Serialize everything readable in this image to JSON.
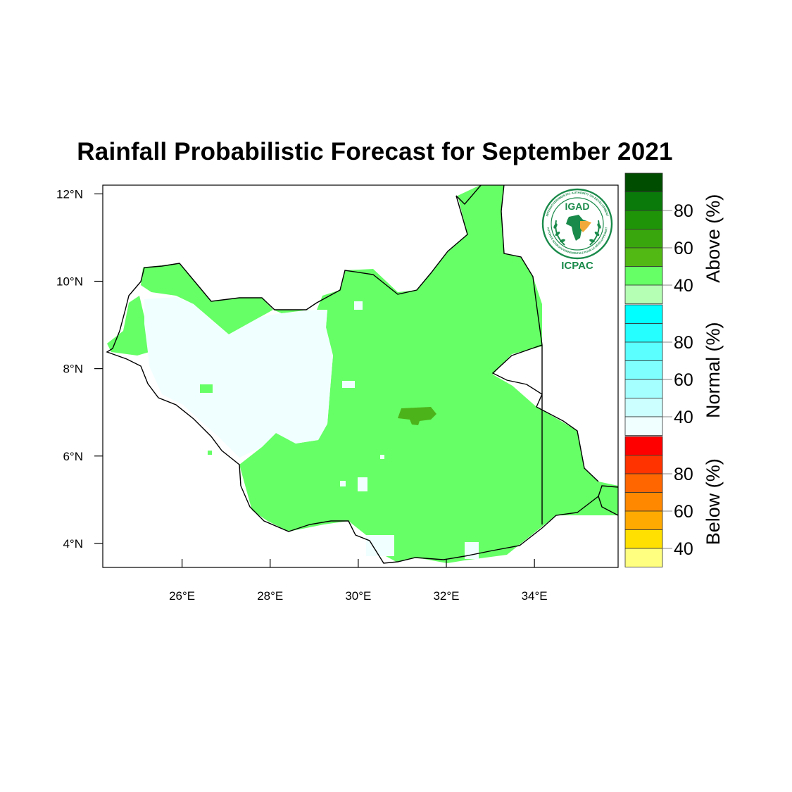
{
  "title": "Rainfall Probabilistic Forecast for September 2021",
  "logo": {
    "org_short": "IGAD",
    "org_center": "ICPAC",
    "ring_text_top": "INTERGOVERNMENTAL AUTHORITY ON DEVELOPMENT",
    "ring_text_bottom": "AUTORITÉ INTERGOUVERNEMENTALE POUR LE DÉVELOPPEMENT"
  },
  "map": {
    "lon_range": [
      24.2,
      35.9
    ],
    "lat_range": [
      3.45,
      12.2
    ],
    "x_ticks": [
      {
        "value": 26,
        "label": "26°E"
      },
      {
        "value": 28,
        "label": "28°E"
      },
      {
        "value": 30,
        "label": "30°E"
      },
      {
        "value": 32,
        "label": "32°E"
      },
      {
        "value": 34,
        "label": "34°E"
      }
    ],
    "y_ticks": [
      {
        "value": 4,
        "label": "4°N"
      },
      {
        "value": 6,
        "label": "6°N"
      },
      {
        "value": 8,
        "label": "8°N"
      },
      {
        "value": 10,
        "label": "10°N"
      },
      {
        "value": 12,
        "label": "12°N"
      }
    ],
    "dominant_category": "Above",
    "above_40_color": "#66ff66",
    "above_50_color": "#4db31a",
    "normal_low_color": "#f0ffff"
  },
  "legend": [
    {
      "name": "Above (%)",
      "colors": [
        "#004d00",
        "#0a7a0a",
        "#1f9409",
        "#3aa60d",
        "#52b814",
        "#66ff66",
        "#b5ffb5"
      ],
      "labels": [
        "80",
        "60",
        "40"
      ]
    },
    {
      "name": "Normal (%)",
      "colors": [
        "#00ffff",
        "#26ffff",
        "#5cffff",
        "#80ffff",
        "#a6ffff",
        "#ccffff",
        "#f0ffff"
      ],
      "labels": [
        "80",
        "60",
        "40"
      ]
    },
    {
      "name": "Below (%)",
      "colors": [
        "#ff0000",
        "#ff3300",
        "#ff6600",
        "#ff8800",
        "#ffaa00",
        "#ffe000",
        "#ffff80"
      ],
      "labels": [
        "80",
        "60",
        "40"
      ]
    }
  ]
}
